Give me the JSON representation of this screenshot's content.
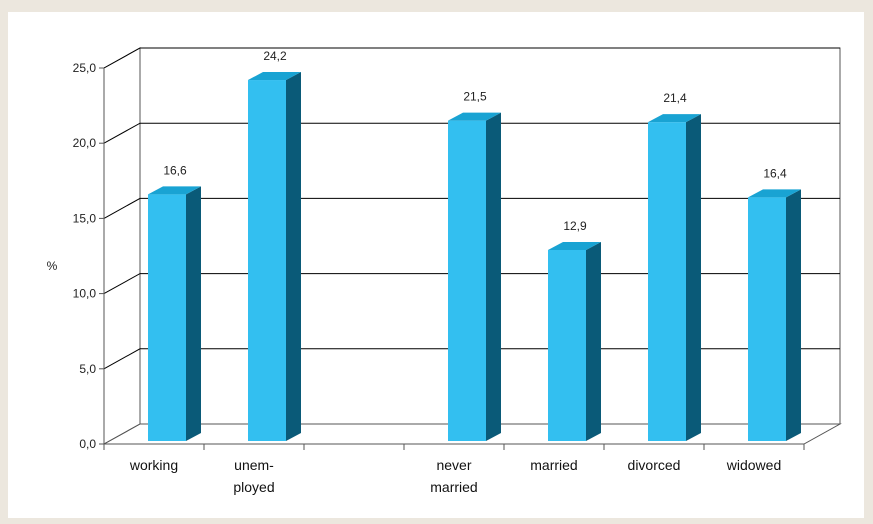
{
  "chart_data": {
    "type": "bar",
    "title": "",
    "xlabel": "",
    "ylabel": "%",
    "ylim": [
      0,
      25
    ],
    "yticks": [
      "0,0",
      "5,0",
      "10,0",
      "15,0",
      "20,0",
      "25,0"
    ],
    "grid": true,
    "categories": [
      {
        "lines": [
          "working"
        ],
        "value": 16.6,
        "label": "16,6"
      },
      {
        "lines": [
          "unem-",
          "ployed"
        ],
        "value": 24.2,
        "label": "24,2"
      },
      {
        "lines": [],
        "value": null,
        "label": ""
      },
      {
        "lines": [
          "never",
          "married"
        ],
        "value": 21.5,
        "label": "21,5"
      },
      {
        "lines": [
          "married"
        ],
        "value": 12.9,
        "label": "12,9"
      },
      {
        "lines": [
          "divorced"
        ],
        "value": 21.4,
        "label": "21,4"
      },
      {
        "lines": [
          "widowed"
        ],
        "value": 16.4,
        "label": "16,4"
      }
    ]
  },
  "colors": {
    "bar_front": "#33bff0",
    "bar_side": "#0a5a78",
    "bar_top": "#19a3d3",
    "grid": "#000000",
    "axis": "#555555"
  }
}
